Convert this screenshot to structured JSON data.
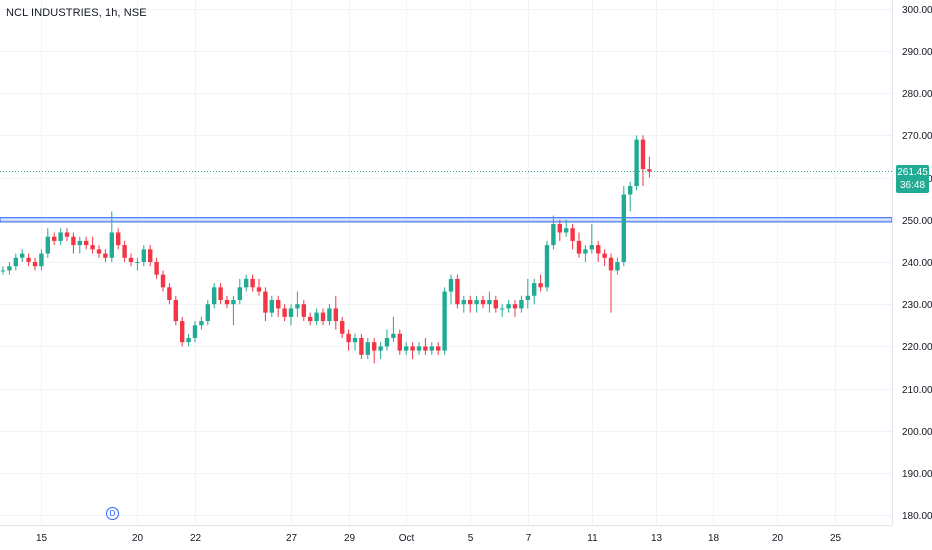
{
  "header": {
    "title": "NCL INDUSTRIES, 1h, NSE"
  },
  "price_tag": {
    "price": "261.45",
    "countdown": "36:48"
  },
  "event_marker": {
    "label": "D"
  },
  "colors": {
    "up": "#22ab94",
    "down": "#f23645",
    "grid": "#f0f3fa",
    "level_line": "#2962ff",
    "last_price_line": "#22ab94",
    "text": "#131722"
  },
  "chart_data": {
    "type": "candlestick",
    "title": "NCL INDUSTRIES, 1h, NSE",
    "ylim": [
      178,
      302
    ],
    "y_ticks": [
      "300.00",
      "290.00",
      "280.00",
      "270.00",
      "260.00",
      "250.00",
      "240.00",
      "230.00",
      "220.00",
      "210.00",
      "200.00",
      "190.00",
      "180.00"
    ],
    "x_ticks": [
      {
        "label": "15",
        "index": 6
      },
      {
        "label": "20",
        "index": 21
      },
      {
        "label": "22",
        "index": 30
      },
      {
        "label": "27",
        "index": 45
      },
      {
        "label": "29",
        "index": 54
      },
      {
        "label": "Oct",
        "index": 63
      },
      {
        "label": "5",
        "index": 73
      },
      {
        "label": "7",
        "index": 82
      },
      {
        "label": "11",
        "index": 92
      },
      {
        "label": "13",
        "index": 102
      },
      {
        "label": "18",
        "index": 111
      },
      {
        "label": "20",
        "index": 121
      },
      {
        "label": "25",
        "index": 130
      }
    ],
    "last_price": 261.45,
    "horizontal_level": [
      249.5,
      250.5
    ],
    "candles": [
      [
        238,
        239,
        237,
        238
      ],
      [
        238,
        240,
        237,
        239
      ],
      [
        239,
        242,
        238,
        241
      ],
      [
        241,
        243,
        240,
        242
      ],
      [
        241,
        242,
        239,
        240
      ],
      [
        240,
        241,
        238,
        239
      ],
      [
        239,
        243,
        238,
        242
      ],
      [
        242,
        248,
        241,
        246
      ],
      [
        246,
        247,
        244,
        245
      ],
      [
        245,
        248,
        244,
        247
      ],
      [
        247,
        248,
        245,
        246
      ],
      [
        246,
        247,
        242,
        244
      ],
      [
        244,
        246,
        242,
        245
      ],
      [
        245,
        246,
        243,
        244
      ],
      [
        244,
        246,
        242,
        243
      ],
      [
        243,
        244,
        241,
        242
      ],
      [
        242,
        243,
        240,
        241
      ],
      [
        241,
        252,
        240,
        247
      ],
      [
        247,
        248,
        243,
        244
      ],
      [
        244,
        245,
        240,
        241
      ],
      [
        241,
        242,
        239,
        240
      ],
      [
        240,
        241,
        238,
        240
      ],
      [
        240,
        244,
        239,
        243
      ],
      [
        243,
        244,
        239,
        240
      ],
      [
        240,
        241,
        236,
        237
      ],
      [
        237,
        238,
        233,
        234
      ],
      [
        234,
        235,
        230,
        231
      ],
      [
        231,
        232,
        225,
        226
      ],
      [
        226,
        227,
        220,
        221
      ],
      [
        221,
        223,
        220,
        222
      ],
      [
        222,
        226,
        221,
        225
      ],
      [
        225,
        227,
        224,
        226
      ],
      [
        226,
        231,
        225,
        230
      ],
      [
        230,
        235,
        229,
        234
      ],
      [
        234,
        235,
        230,
        231
      ],
      [
        231,
        232,
        229,
        230
      ],
      [
        230,
        232,
        225,
        231
      ],
      [
        231,
        236,
        230,
        234
      ],
      [
        234,
        237,
        233,
        236
      ],
      [
        236,
        237,
        233,
        234
      ],
      [
        234,
        236,
        232,
        233
      ],
      [
        233,
        234,
        226,
        228
      ],
      [
        228,
        232,
        227,
        231
      ],
      [
        231,
        232,
        227,
        229
      ],
      [
        229,
        230,
        226,
        227
      ],
      [
        227,
        230,
        225,
        229
      ],
      [
        229,
        233,
        227,
        230
      ],
      [
        230,
        231,
        226,
        227
      ],
      [
        227,
        228,
        225,
        226
      ],
      [
        226,
        229,
        225,
        228
      ],
      [
        228,
        229,
        225,
        226
      ],
      [
        226,
        230,
        225,
        229
      ],
      [
        229,
        232,
        224,
        226
      ],
      [
        226,
        227,
        222,
        223
      ],
      [
        223,
        224,
        219,
        221
      ],
      [
        221,
        223,
        219,
        222
      ],
      [
        222,
        223,
        217,
        218
      ],
      [
        218,
        222,
        217,
        221
      ],
      [
        221,
        222,
        216,
        219
      ],
      [
        219,
        221,
        217,
        220
      ],
      [
        220,
        224,
        219,
        222
      ],
      [
        222,
        227,
        221,
        223
      ],
      [
        223,
        224,
        218,
        219
      ],
      [
        219,
        221,
        218,
        220
      ],
      [
        220,
        221,
        217,
        219
      ],
      [
        219,
        221,
        218,
        220
      ],
      [
        220,
        222,
        218,
        219
      ],
      [
        219,
        221,
        218,
        220
      ],
      [
        220,
        221,
        218,
        219
      ],
      [
        219,
        234,
        218,
        233
      ],
      [
        233,
        237,
        230,
        236
      ],
      [
        236,
        237,
        229,
        230
      ],
      [
        230,
        232,
        228,
        231
      ],
      [
        231,
        232,
        228,
        230
      ],
      [
        230,
        232,
        228,
        231
      ],
      [
        231,
        232,
        229,
        230
      ],
      [
        230,
        233,
        228,
        231
      ],
      [
        231,
        232,
        228,
        229
      ],
      [
        229,
        230,
        227,
        229
      ],
      [
        229,
        231,
        228,
        230
      ],
      [
        230,
        231,
        227,
        229
      ],
      [
        229,
        232,
        228,
        231
      ],
      [
        231,
        236,
        229,
        232
      ],
      [
        232,
        236,
        230,
        235
      ],
      [
        235,
        237,
        233,
        234
      ],
      [
        234,
        245,
        233,
        244
      ],
      [
        244,
        251,
        243,
        249
      ],
      [
        249,
        250,
        245,
        247
      ],
      [
        247,
        250,
        246,
        248
      ],
      [
        248,
        249,
        243,
        245
      ],
      [
        245,
        247,
        241,
        242
      ],
      [
        242,
        244,
        240,
        243
      ],
      [
        243,
        249,
        242,
        244
      ],
      [
        244,
        245,
        240,
        242
      ],
      [
        242,
        243,
        239,
        241
      ],
      [
        241,
        242,
        228,
        238
      ],
      [
        238,
        241,
        237,
        240
      ],
      [
        240,
        258,
        239,
        256
      ],
      [
        256,
        259,
        252,
        258
      ],
      [
        258,
        270,
        257,
        269
      ],
      [
        269,
        270,
        258,
        262
      ],
      [
        262,
        265,
        260,
        261.45
      ]
    ]
  }
}
